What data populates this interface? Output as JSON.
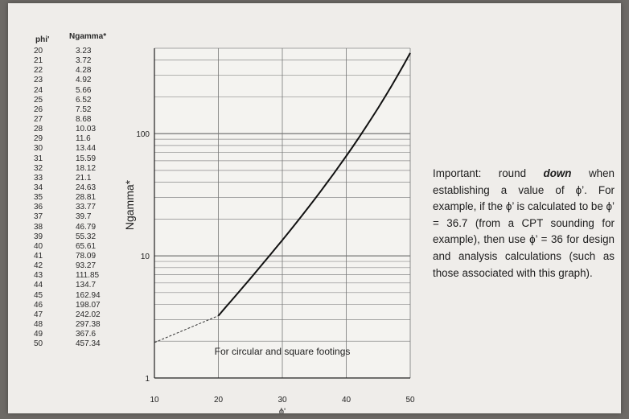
{
  "table": {
    "header_phi": "phi'",
    "header_ngamma": "Ngamma*",
    "rows": [
      [
        "20",
        "3.23"
      ],
      [
        "21",
        "3.72"
      ],
      [
        "22",
        "4.28"
      ],
      [
        "23",
        "4.92"
      ],
      [
        "24",
        "5.66"
      ],
      [
        "25",
        "6.52"
      ],
      [
        "26",
        "7.52"
      ],
      [
        "27",
        "8.68"
      ],
      [
        "28",
        "10.03"
      ],
      [
        "29",
        "11.6"
      ],
      [
        "30",
        "13.44"
      ],
      [
        "31",
        "15.59"
      ],
      [
        "32",
        "18.12"
      ],
      [
        "33",
        "21.1"
      ],
      [
        "34",
        "24.63"
      ],
      [
        "35",
        "28.81"
      ],
      [
        "36",
        "33.77"
      ],
      [
        "37",
        "39.7"
      ],
      [
        "38",
        "46.79"
      ],
      [
        "39",
        "55.32"
      ],
      [
        "40",
        "65.61"
      ],
      [
        "41",
        "78.09"
      ],
      [
        "42",
        "93.27"
      ],
      [
        "43",
        "111.85"
      ],
      [
        "44",
        "134.7"
      ],
      [
        "45",
        "162.94"
      ],
      [
        "46",
        "198.07"
      ],
      [
        "47",
        "242.02"
      ],
      [
        "48",
        "297.38"
      ],
      [
        "49",
        "367.6"
      ],
      [
        "50",
        "457.34"
      ]
    ]
  },
  "note": {
    "prefix": "Important: round ",
    "emphasis": "down",
    "suffix": " when establishing a value of ϕ’. For example, if the ϕ’ is calculated to be ϕ’ = 36.7 (from a CPT sounding for example), then use ϕ’ = 36 for design and analysis calculations (such as those associated with this graph)."
  },
  "chart_data": {
    "type": "line",
    "xlabel": "ϕ'",
    "ylabel": "Ngamma*",
    "annotation": "For circular and square footings",
    "xlim": [
      10,
      50
    ],
    "ylim": [
      1,
      500
    ],
    "y_scale": "log",
    "grid": true,
    "x_ticks": [
      "10",
      "20",
      "30",
      "40",
      "50"
    ],
    "y_ticks": [
      "1",
      "10",
      "100"
    ],
    "dashed_extension": {
      "x": [
        10,
        20
      ],
      "y": [
        1.95,
        3.23
      ]
    },
    "series": [
      {
        "x": [
          20,
          21,
          22,
          23,
          24,
          25,
          26,
          27,
          28,
          29,
          30,
          31,
          32,
          33,
          34,
          35,
          36,
          37,
          38,
          39,
          40,
          41,
          42,
          43,
          44,
          45,
          46,
          47,
          48,
          49,
          50
        ],
        "values": [
          3.23,
          3.72,
          4.28,
          4.92,
          5.66,
          6.52,
          7.52,
          8.68,
          10.03,
          11.6,
          13.44,
          15.59,
          18.12,
          21.1,
          24.63,
          28.81,
          33.77,
          39.7,
          46.79,
          55.32,
          65.61,
          78.09,
          93.27,
          111.85,
          134.7,
          162.94,
          198.07,
          242.02,
          297.38,
          367.6,
          457.34
        ]
      }
    ]
  }
}
